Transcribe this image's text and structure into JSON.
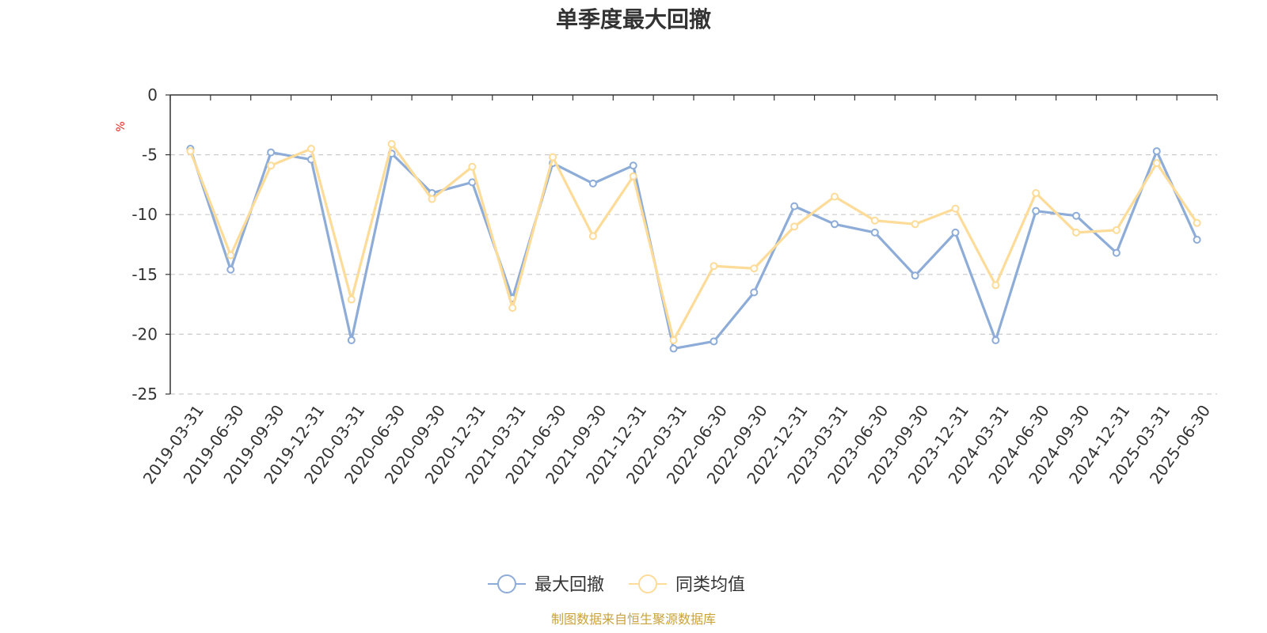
{
  "chart_data": {
    "type": "line",
    "title": "单季度最大回撤",
    "ylabel": "%",
    "ylim": [
      -25,
      0
    ],
    "yticks": [
      0,
      -5,
      -10,
      -15,
      -20,
      -25
    ],
    "grid": "horizontal-dashed",
    "legend_position": "bottom-center",
    "x": [
      "2019-03-31",
      "2019-06-30",
      "2019-09-30",
      "2019-12-31",
      "2020-03-31",
      "2020-06-30",
      "2020-09-30",
      "2020-12-31",
      "2021-03-31",
      "2021-06-30",
      "2021-09-30",
      "2021-12-31",
      "2022-03-31",
      "2022-06-30",
      "2022-09-30",
      "2022-12-31",
      "2023-03-31",
      "2023-06-30",
      "2023-09-30",
      "2023-12-31",
      "2024-03-31",
      "2024-06-30",
      "2024-09-30",
      "2024-12-31",
      "2025-03-31",
      "2025-06-30"
    ],
    "series": [
      {
        "name": "最大回撤",
        "color": "#8eacd8",
        "values": [
          -4.5,
          -14.6,
          -4.8,
          -5.4,
          -20.5,
          -4.9,
          -8.2,
          -7.3,
          -17.0,
          -5.7,
          -7.4,
          -5.9,
          -21.2,
          -20.6,
          -16.5,
          -9.3,
          -10.8,
          -11.5,
          -15.1,
          -11.5,
          -20.5,
          -9.7,
          -10.1,
          -13.2,
          -4.7,
          -12.1
        ]
      },
      {
        "name": "同类均值",
        "color": "#fddb98",
        "values": [
          -4.7,
          -13.4,
          -5.9,
          -4.5,
          -17.1,
          -4.1,
          -8.7,
          -6.0,
          -17.8,
          -5.2,
          -11.8,
          -6.8,
          -20.5,
          -14.3,
          -14.5,
          -11.0,
          -8.5,
          -10.5,
          -10.8,
          -9.5,
          -15.9,
          -8.2,
          -11.5,
          -11.3,
          -5.7,
          -10.7
        ]
      }
    ]
  },
  "source_text": "制图数据来自恒生聚源数据库"
}
